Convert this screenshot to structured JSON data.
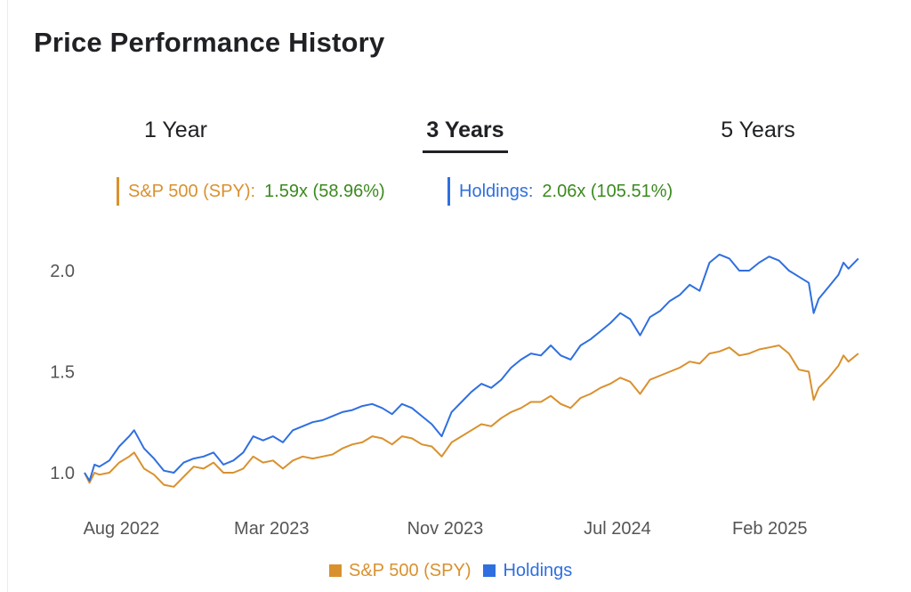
{
  "page": {
    "title": "Price Performance History"
  },
  "tabs": [
    {
      "label": "1 Year",
      "active": false
    },
    {
      "label": "3 Years",
      "active": true
    },
    {
      "label": "5 Years",
      "active": false
    }
  ],
  "summary": {
    "spy": {
      "label": "S&P 500 (SPY):",
      "value": "1.59x (58.96%)",
      "color": "#d9912e"
    },
    "holdings": {
      "label": "Holdings:",
      "value": "2.06x (105.51%)",
      "color": "#2f6fe0"
    }
  },
  "legend": [
    {
      "label": "S&P 500 (SPY)",
      "color": "#d9912e"
    },
    {
      "label": "Holdings",
      "color": "#2f6fe0"
    }
  ],
  "chart_data": {
    "type": "line",
    "title": "",
    "xlabel": "",
    "ylabel": "",
    "xlim": [
      "2022-06-10",
      "2025-06-10"
    ],
    "ylim": [
      0.85,
      2.15
    ],
    "yticks": [
      1.0,
      1.5,
      2.0
    ],
    "ytick_labels": [
      "1.0",
      "1.5",
      "2.0"
    ],
    "xticks": [
      {
        "date": "2022-08-01",
        "label": "Aug 2022"
      },
      {
        "date": "2023-03-01",
        "label": "Mar 2023"
      },
      {
        "date": "2023-11-01",
        "label": "Nov 2023"
      },
      {
        "date": "2024-07-01",
        "label": "Jul 2024"
      },
      {
        "date": "2025-02-01",
        "label": "Feb 2025"
      }
    ],
    "grid": false,
    "legend_position": "bottom",
    "series": [
      {
        "name": "S&P 500 (SPY)",
        "color": "#d9912e",
        "points": [
          [
            "2022-06-10",
            1.0
          ],
          [
            "2022-06-17",
            0.95
          ],
          [
            "2022-06-24",
            1.0
          ],
          [
            "2022-07-01",
            0.99
          ],
          [
            "2022-07-15",
            1.0
          ],
          [
            "2022-07-29",
            1.05
          ],
          [
            "2022-08-12",
            1.08
          ],
          [
            "2022-08-19",
            1.1
          ],
          [
            "2022-09-02",
            1.02
          ],
          [
            "2022-09-16",
            0.99
          ],
          [
            "2022-09-30",
            0.94
          ],
          [
            "2022-10-14",
            0.93
          ],
          [
            "2022-10-28",
            0.98
          ],
          [
            "2022-11-11",
            1.03
          ],
          [
            "2022-11-25",
            1.02
          ],
          [
            "2022-12-09",
            1.05
          ],
          [
            "2022-12-23",
            1.0
          ],
          [
            "2023-01-06",
            1.0
          ],
          [
            "2023-01-20",
            1.02
          ],
          [
            "2023-02-03",
            1.08
          ],
          [
            "2023-02-17",
            1.05
          ],
          [
            "2023-03-03",
            1.06
          ],
          [
            "2023-03-17",
            1.02
          ],
          [
            "2023-03-31",
            1.06
          ],
          [
            "2023-04-14",
            1.08
          ],
          [
            "2023-04-28",
            1.07
          ],
          [
            "2023-05-12",
            1.08
          ],
          [
            "2023-05-26",
            1.09
          ],
          [
            "2023-06-09",
            1.12
          ],
          [
            "2023-06-23",
            1.14
          ],
          [
            "2023-07-07",
            1.15
          ],
          [
            "2023-07-21",
            1.18
          ],
          [
            "2023-08-04",
            1.17
          ],
          [
            "2023-08-18",
            1.14
          ],
          [
            "2023-09-01",
            1.18
          ],
          [
            "2023-09-15",
            1.17
          ],
          [
            "2023-09-29",
            1.14
          ],
          [
            "2023-10-13",
            1.13
          ],
          [
            "2023-10-27",
            1.08
          ],
          [
            "2023-11-10",
            1.15
          ],
          [
            "2023-11-24",
            1.18
          ],
          [
            "2023-12-08",
            1.21
          ],
          [
            "2023-12-22",
            1.24
          ],
          [
            "2024-01-05",
            1.23
          ],
          [
            "2024-01-19",
            1.27
          ],
          [
            "2024-02-02",
            1.3
          ],
          [
            "2024-02-16",
            1.32
          ],
          [
            "2024-03-01",
            1.35
          ],
          [
            "2024-03-15",
            1.35
          ],
          [
            "2024-03-29",
            1.38
          ],
          [
            "2024-04-12",
            1.34
          ],
          [
            "2024-04-26",
            1.32
          ],
          [
            "2024-05-10",
            1.37
          ],
          [
            "2024-05-24",
            1.39
          ],
          [
            "2024-06-07",
            1.42
          ],
          [
            "2024-06-21",
            1.44
          ],
          [
            "2024-07-05",
            1.47
          ],
          [
            "2024-07-19",
            1.45
          ],
          [
            "2024-08-02",
            1.39
          ],
          [
            "2024-08-16",
            1.46
          ],
          [
            "2024-08-30",
            1.48
          ],
          [
            "2024-09-13",
            1.5
          ],
          [
            "2024-09-27",
            1.52
          ],
          [
            "2024-10-11",
            1.55
          ],
          [
            "2024-10-25",
            1.54
          ],
          [
            "2024-11-08",
            1.59
          ],
          [
            "2024-11-22",
            1.6
          ],
          [
            "2024-12-06",
            1.62
          ],
          [
            "2024-12-20",
            1.58
          ],
          [
            "2025-01-03",
            1.59
          ],
          [
            "2025-01-17",
            1.61
          ],
          [
            "2025-01-31",
            1.62
          ],
          [
            "2025-02-14",
            1.63
          ],
          [
            "2025-02-28",
            1.59
          ],
          [
            "2025-03-14",
            1.51
          ],
          [
            "2025-03-28",
            1.5
          ],
          [
            "2025-04-04",
            1.36
          ],
          [
            "2025-04-11",
            1.42
          ],
          [
            "2025-04-25",
            1.47
          ],
          [
            "2025-05-09",
            1.53
          ],
          [
            "2025-05-16",
            1.58
          ],
          [
            "2025-05-23",
            1.55
          ],
          [
            "2025-06-06",
            1.59
          ]
        ]
      },
      {
        "name": "Holdings",
        "color": "#2f6fe0",
        "points": [
          [
            "2022-06-10",
            1.0
          ],
          [
            "2022-06-17",
            0.96
          ],
          [
            "2022-06-24",
            1.04
          ],
          [
            "2022-07-01",
            1.03
          ],
          [
            "2022-07-15",
            1.06
          ],
          [
            "2022-07-29",
            1.13
          ],
          [
            "2022-08-12",
            1.18
          ],
          [
            "2022-08-19",
            1.21
          ],
          [
            "2022-09-02",
            1.12
          ],
          [
            "2022-09-16",
            1.07
          ],
          [
            "2022-09-30",
            1.01
          ],
          [
            "2022-10-14",
            1.0
          ],
          [
            "2022-10-28",
            1.05
          ],
          [
            "2022-11-11",
            1.07
          ],
          [
            "2022-11-25",
            1.08
          ],
          [
            "2022-12-09",
            1.1
          ],
          [
            "2022-12-23",
            1.04
          ],
          [
            "2023-01-06",
            1.06
          ],
          [
            "2023-01-20",
            1.1
          ],
          [
            "2023-02-03",
            1.18
          ],
          [
            "2023-02-17",
            1.16
          ],
          [
            "2023-03-03",
            1.18
          ],
          [
            "2023-03-17",
            1.15
          ],
          [
            "2023-03-31",
            1.21
          ],
          [
            "2023-04-14",
            1.23
          ],
          [
            "2023-04-28",
            1.25
          ],
          [
            "2023-05-12",
            1.26
          ],
          [
            "2023-05-26",
            1.28
          ],
          [
            "2023-06-09",
            1.3
          ],
          [
            "2023-06-23",
            1.31
          ],
          [
            "2023-07-07",
            1.33
          ],
          [
            "2023-07-21",
            1.34
          ],
          [
            "2023-08-04",
            1.32
          ],
          [
            "2023-08-18",
            1.29
          ],
          [
            "2023-09-01",
            1.34
          ],
          [
            "2023-09-15",
            1.32
          ],
          [
            "2023-09-29",
            1.28
          ],
          [
            "2023-10-13",
            1.24
          ],
          [
            "2023-10-27",
            1.18
          ],
          [
            "2023-11-10",
            1.3
          ],
          [
            "2023-11-24",
            1.35
          ],
          [
            "2023-12-08",
            1.4
          ],
          [
            "2023-12-22",
            1.44
          ],
          [
            "2024-01-05",
            1.42
          ],
          [
            "2024-01-19",
            1.46
          ],
          [
            "2024-02-02",
            1.52
          ],
          [
            "2024-02-16",
            1.56
          ],
          [
            "2024-03-01",
            1.59
          ],
          [
            "2024-03-15",
            1.58
          ],
          [
            "2024-03-29",
            1.63
          ],
          [
            "2024-04-12",
            1.58
          ],
          [
            "2024-04-26",
            1.56
          ],
          [
            "2024-05-10",
            1.63
          ],
          [
            "2024-05-24",
            1.66
          ],
          [
            "2024-06-07",
            1.7
          ],
          [
            "2024-06-21",
            1.74
          ],
          [
            "2024-07-05",
            1.79
          ],
          [
            "2024-07-19",
            1.76
          ],
          [
            "2024-08-02",
            1.68
          ],
          [
            "2024-08-16",
            1.77
          ],
          [
            "2024-08-30",
            1.8
          ],
          [
            "2024-09-13",
            1.85
          ],
          [
            "2024-09-27",
            1.88
          ],
          [
            "2024-10-11",
            1.93
          ],
          [
            "2024-10-25",
            1.9
          ],
          [
            "2024-11-08",
            2.04
          ],
          [
            "2024-11-22",
            2.08
          ],
          [
            "2024-12-06",
            2.06
          ],
          [
            "2024-12-20",
            2.0
          ],
          [
            "2025-01-03",
            2.0
          ],
          [
            "2025-01-17",
            2.04
          ],
          [
            "2025-01-31",
            2.07
          ],
          [
            "2025-02-14",
            2.05
          ],
          [
            "2025-02-28",
            2.0
          ],
          [
            "2025-03-14",
            1.97
          ],
          [
            "2025-03-28",
            1.94
          ],
          [
            "2025-04-04",
            1.79
          ],
          [
            "2025-04-11",
            1.86
          ],
          [
            "2025-04-25",
            1.92
          ],
          [
            "2025-05-09",
            1.98
          ],
          [
            "2025-05-16",
            2.04
          ],
          [
            "2025-05-23",
            2.01
          ],
          [
            "2025-06-06",
            2.06
          ]
        ]
      }
    ]
  }
}
